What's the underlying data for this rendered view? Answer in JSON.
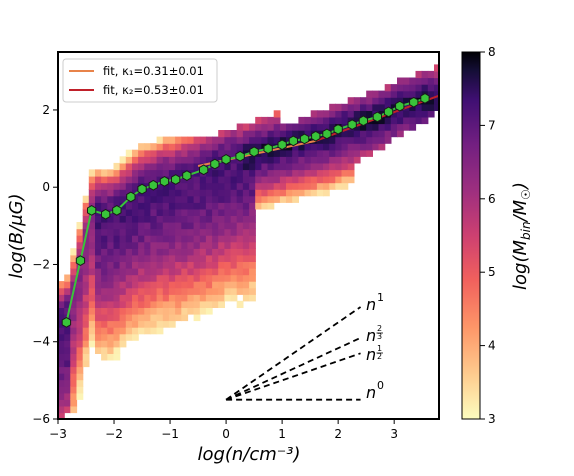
{
  "chart_data": {
    "type": "heatmap",
    "xlabel": "log(n/cm⁻³)",
    "ylabel": "log(B/μG)",
    "xlim": [
      -3.0,
      3.8
    ],
    "ylim": [
      -6.0,
      3.5
    ],
    "x_ticks": [
      -3,
      -2,
      -1,
      0,
      1,
      2,
      3
    ],
    "x_tick_labels": [
      "−3",
      "−2",
      "−1",
      "0",
      "1",
      "2",
      "3"
    ],
    "y_ticks": [
      -6,
      -4,
      -2,
      0,
      2
    ],
    "y_tick_labels": [
      "−6",
      "−4",
      "−2",
      "0",
      "2"
    ],
    "colorbar": {
      "label": "log(M_bin/M☉)",
      "range": [
        3,
        8
      ],
      "ticks": [
        3,
        4,
        5,
        6,
        7,
        8
      ],
      "tick_labels": [
        "3",
        "4",
        "5",
        "6",
        "7",
        "8"
      ],
      "colormap": "magma_r"
    },
    "legend": {
      "location": "top-left",
      "entries": [
        {
          "label": "fit, κ₁=0.31±0.01",
          "color": "#E8834A"
        },
        {
          "label": "fit, κ₂=0.53±0.01",
          "color": "#C0202A"
        }
      ]
    },
    "binned_median": {
      "marker_color": "#39C43A",
      "marker_edge": "#1a1a1a",
      "x": [
        -2.85,
        -2.6,
        -2.4,
        -2.15,
        -1.95,
        -1.7,
        -1.5,
        -1.3,
        -1.1,
        -0.9,
        -0.7,
        -0.4,
        -0.2,
        0.0,
        0.25,
        0.5,
        0.75,
        1.0,
        1.2,
        1.4,
        1.6,
        1.8,
        2.0,
        2.25,
        2.45,
        2.7,
        2.9,
        3.1,
        3.35,
        3.55
      ],
      "y": [
        -3.5,
        -1.9,
        -0.6,
        -0.7,
        -0.6,
        -0.25,
        -0.05,
        0.05,
        0.15,
        0.2,
        0.3,
        0.45,
        0.6,
        0.72,
        0.8,
        0.92,
        1.0,
        1.1,
        1.2,
        1.25,
        1.32,
        1.38,
        1.5,
        1.62,
        1.72,
        1.82,
        1.95,
        2.1,
        2.2,
        2.3
      ]
    },
    "fit_lines": [
      {
        "label": "fit, κ₁=0.31±0.01",
        "color": "#E8834A",
        "x": [
          -0.5,
          1.6
        ],
        "y": [
          0.55,
          1.2
        ]
      },
      {
        "label": "fit, κ₂=0.53±0.01",
        "color": "#C0202A",
        "x": [
          1.6,
          3.8
        ],
        "y": [
          1.2,
          2.37
        ]
      }
    ],
    "reference_slopes": [
      {
        "label": "n¹",
        "slope": 1.0
      },
      {
        "label": "n^(2/3)",
        "slope": 0.6667
      },
      {
        "label": "n^(1/2)",
        "slope": 0.5
      },
      {
        "label": "n⁰",
        "slope": 0.0
      }
    ],
    "reference_origin": [
      0.0,
      -5.5
    ],
    "reference_x_end": 2.4
  }
}
